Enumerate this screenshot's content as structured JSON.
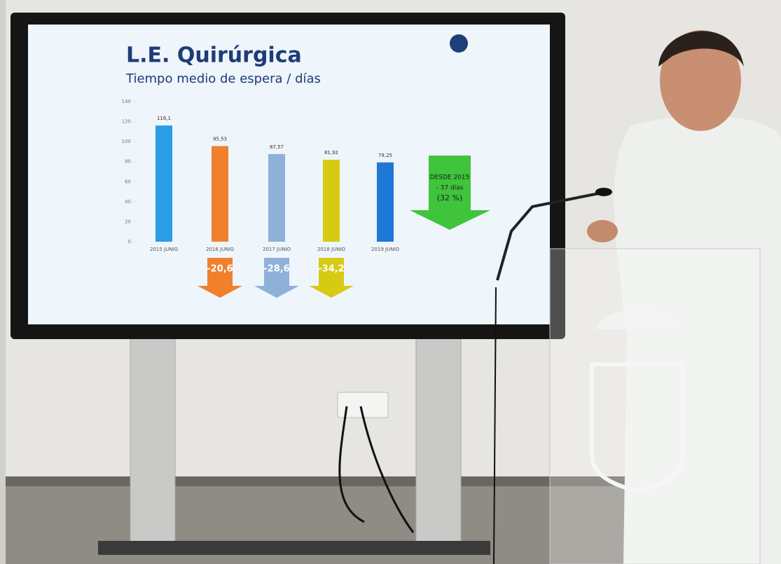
{
  "chart_data": {
    "type": "bar",
    "title": "L.E. Quirúrgica",
    "subtitle": "Tiempo medio de espera / días",
    "categories": [
      "2015  JUNIO",
      "2016  JUNIO",
      "2017  JUNIO",
      "2018  JUNIO",
      "2019  JUNIO"
    ],
    "values": [
      116.1,
      95.53,
      87.57,
      81.92,
      79.25
    ],
    "value_labels": [
      "116,1",
      "95,53",
      "87,57",
      "81,92",
      "79,25"
    ],
    "colors": [
      "#2b9de6",
      "#f0802c",
      "#8fb1d9",
      "#d6cb12",
      "#1f78d6"
    ],
    "ylim": [
      0,
      140
    ],
    "yticks": [
      0,
      20,
      40,
      60,
      80,
      100,
      120,
      140
    ],
    "annotations": [
      "-20,6",
      "-28,6",
      "-34,2"
    ],
    "callout": [
      "DESDE 2015",
      "- 37 días",
      "(32 %)"
    ],
    "callout_color": "#3fc43b"
  }
}
